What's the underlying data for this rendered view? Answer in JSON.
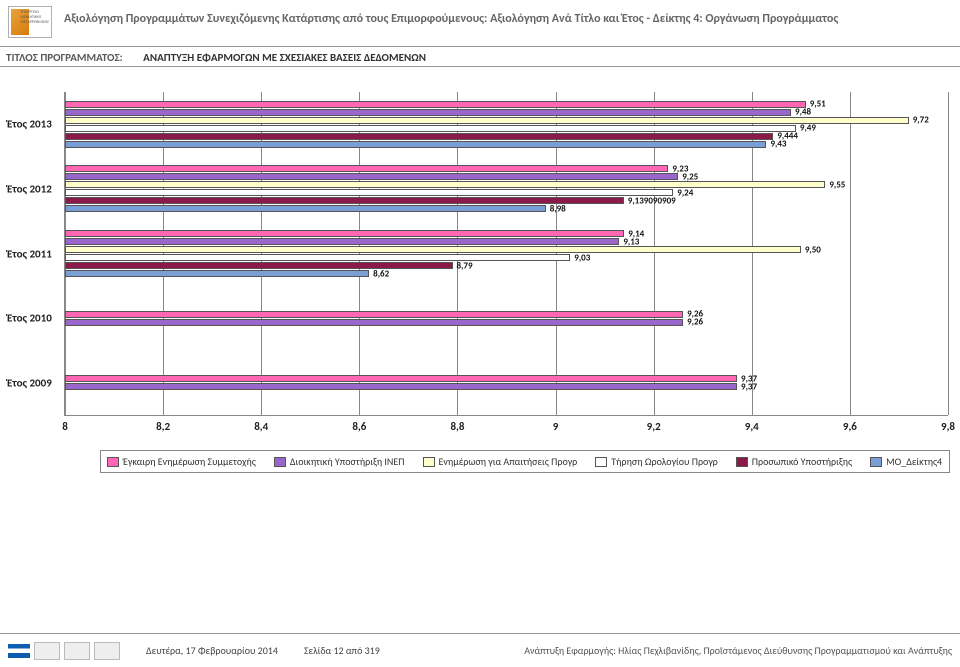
{
  "header": {
    "title": "Αξιολόγηση Προγραμμάτων Συνεχιζόμενης Κατάρτισης από τους Επιμορφούμενους:  Αξιολόγηση Ανά Τίτλο και Έτος - Δείκτης 4: Οργάνωση Προγράμματος",
    "sub_label": "ΤΙΤΛΟΣ ΠΡΟΓΡΑΜΜΑΤΟΣ:",
    "sub_value": "ΑΝΑΠΤΥΞΗ ΕΦΑΡΜΟΓΩΝ ΜΕ ΣΧΕΣΙΑΚΕΣ ΒΑΣΕΙΣ ΔΕΔΟΜΕΝΩΝ"
  },
  "chart": {
    "type": "bar-horizontal-grouped",
    "xmin": 8.0,
    "xmax": 9.8,
    "xtick_step": 0.2,
    "xticks": [
      "8",
      "8,2",
      "8,4",
      "8,6",
      "8,8",
      "9",
      "9,2",
      "9,4",
      "9,6",
      "9,8"
    ],
    "background_color": "#ffffff",
    "grid_color": "#888888",
    "bar_border": "#555555",
    "categories": [
      "Έτος 2013",
      "Έτος 2012",
      "Έτος 2011",
      "Έτος 2010",
      "Έτος 2009"
    ],
    "series": [
      {
        "name": "Έγκαιρη Ενημέρωση Συμμετοχής",
        "color": "#ff66b3"
      },
      {
        "name": "Διοικητική Υποστήριξη ΙΝΕΠ",
        "color": "#9966cc"
      },
      {
        "name": "Ενημέρωση για Απαιτήσεις Προγρ",
        "color": "#ffffcc"
      },
      {
        "name": "Τήρηση Ωρολογίου Προγρ",
        "color": "#ffffff"
      },
      {
        "name": "Προσωπικό Υποστήριξης",
        "color": "#8b1a4b"
      },
      {
        "name": "ΜΟ_Δείκτης4",
        "color": "#7a9ed6"
      }
    ],
    "data": {
      "Έτος 2013": [
        {
          "s": 0,
          "v": 9.51,
          "lbl": "9,51"
        },
        {
          "s": 1,
          "v": 9.48,
          "lbl": "9,48"
        },
        {
          "s": 2,
          "v": 9.72,
          "lbl": "9,72"
        },
        {
          "s": 3,
          "v": 9.49,
          "lbl": "9,49"
        },
        {
          "s": 4,
          "v": 9.444,
          "lbl": "9,444"
        },
        {
          "s": 5,
          "v": 9.43,
          "lbl": "9,43"
        }
      ],
      "Έτος 2012": [
        {
          "s": 0,
          "v": 9.23,
          "lbl": "9,23"
        },
        {
          "s": 1,
          "v": 9.25,
          "lbl": "9,25"
        },
        {
          "s": 2,
          "v": 9.55,
          "lbl": "9,55"
        },
        {
          "s": 3,
          "v": 9.24,
          "lbl": "9,24"
        },
        {
          "s": 4,
          "v": 9.13909,
          "lbl": "9,139090909"
        },
        {
          "s": 5,
          "v": 8.98,
          "lbl": "8,98"
        }
      ],
      "Έτος 2011": [
        {
          "s": 0,
          "v": 9.14,
          "lbl": "9,14"
        },
        {
          "s": 1,
          "v": 9.13,
          "lbl": "9,13"
        },
        {
          "s": 2,
          "v": 9.5,
          "lbl": "9,50"
        },
        {
          "s": 3,
          "v": 9.03,
          "lbl": "9,03"
        },
        {
          "s": 4,
          "v": 8.79,
          "lbl": "8,79"
        },
        {
          "s": 5,
          "v": 8.62,
          "lbl": "8,62"
        }
      ],
      "Έτος 2010": [
        {
          "s": 0,
          "v": 9.26,
          "lbl": "9,26"
        },
        {
          "s": 1,
          "v": 9.26,
          "lbl": "9,26"
        }
      ],
      "Έτος 2009": [
        {
          "s": 0,
          "v": 9.37,
          "lbl": "9,37"
        },
        {
          "s": 1,
          "v": 9.37,
          "lbl": "9,37"
        }
      ]
    }
  },
  "footer": {
    "date": "Δευτέρα, 17 Φεβρουαρίου 2014",
    "page": "Σελίδα 12 από 319",
    "credit": "Ανάπτυξη Εφαρμογής: Ηλίας Πεχλιβανίδης, Προϊστάμενος Διεύθυνσης Προγραμματισμού και Ανάπτυξης"
  }
}
